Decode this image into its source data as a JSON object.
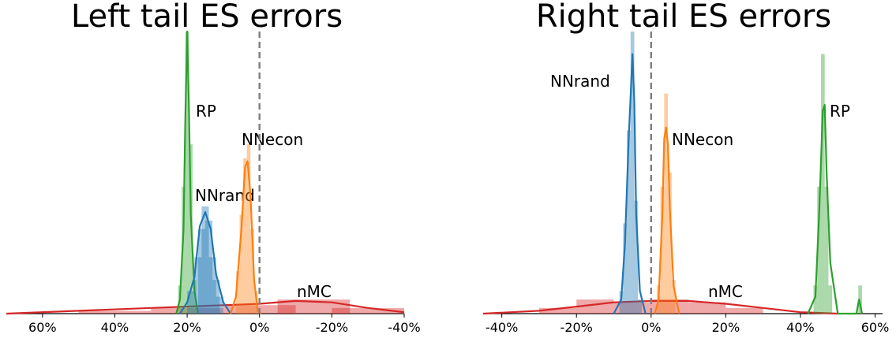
{
  "chart_data": [
    {
      "type": "area",
      "title": "Left tail ES errors",
      "xlabel": "",
      "ylabel": "",
      "x_reversed": true,
      "xlim": [
        70,
        -40
      ],
      "xticks": [
        60,
        40,
        20,
        0,
        -20,
        -40
      ],
      "tick_labels": [
        "60%",
        "40%",
        "20%",
        "0%",
        "-20%",
        "-40%"
      ],
      "reference_line_x": 0,
      "series": [
        {
          "name": "RP",
          "color": "#2ca02c",
          "density_curve": [
            [
              23.0,
              0.0
            ],
            [
              22.0,
              0.05
            ],
            [
              21.0,
              0.3
            ],
            [
              20.5,
              0.7
            ],
            [
              20.0,
              1.0
            ],
            [
              19.5,
              0.72
            ],
            [
              19.0,
              0.35
            ],
            [
              18.0,
              0.08
            ],
            [
              17.0,
              0.0
            ]
          ],
          "histogram": [
            [
              22.0,
              0.1
            ],
            [
              21.0,
              0.45
            ],
            [
              20.0,
              1.0
            ],
            [
              19.0,
              0.6
            ],
            [
              18.0,
              0.12
            ]
          ]
        },
        {
          "name": "NNrand",
          "color": "#1f77b4",
          "density_curve": [
            [
              22.0,
              0.0
            ],
            [
              20.0,
              0.04
            ],
            [
              18.0,
              0.13
            ],
            [
              16.5,
              0.31
            ],
            [
              15.0,
              0.36
            ],
            [
              13.5,
              0.3
            ],
            [
              12.0,
              0.14
            ],
            [
              10.0,
              0.04
            ],
            [
              8.0,
              0.0
            ]
          ],
          "histogram": [
            [
              19.0,
              0.08
            ],
            [
              17.0,
              0.2
            ],
            [
              16.0,
              0.3
            ],
            [
              15.0,
              0.38
            ],
            [
              14.0,
              0.33
            ],
            [
              13.0,
              0.2
            ],
            [
              12.0,
              0.12
            ],
            [
              11.0,
              0.06
            ]
          ]
        },
        {
          "name": "NNecon",
          "color": "#ff7f0e",
          "density_curve": [
            [
              8.0,
              0.0
            ],
            [
              6.5,
              0.06
            ],
            [
              5.0,
              0.3
            ],
            [
              4.0,
              0.52
            ],
            [
              3.3,
              0.54
            ],
            [
              2.5,
              0.42
            ],
            [
              1.5,
              0.12
            ],
            [
              0.5,
              0.01
            ],
            [
              -0.5,
              0.0
            ]
          ],
          "histogram": [
            [
              6.0,
              0.15
            ],
            [
              5.0,
              0.35
            ],
            [
              4.0,
              0.55
            ],
            [
              3.0,
              0.6
            ],
            [
              2.0,
              0.3
            ],
            [
              1.0,
              0.08
            ]
          ]
        },
        {
          "name": "nMC",
          "color": "#d62728",
          "density_curve": [
            [
              70,
              0.0
            ],
            [
              50,
              0.01
            ],
            [
              30,
              0.02
            ],
            [
              10,
              0.03
            ],
            [
              0,
              0.035
            ],
            [
              -10,
              0.045
            ],
            [
              -20,
              0.04
            ],
            [
              -30,
              0.02
            ],
            [
              -40,
              0.005
            ]
          ],
          "histogram": [
            [
              60,
              0.0
            ],
            [
              40,
              0.01
            ],
            [
              20,
              0.02
            ],
            [
              0,
              0.03
            ],
            [
              -15,
              0.05
            ],
            [
              -30,
              0.02
            ]
          ]
        }
      ]
    },
    {
      "type": "area",
      "title": "Right tail ES errors",
      "xlabel": "",
      "ylabel": "",
      "xlim": [
        -45,
        62
      ],
      "xticks": [
        -40,
        -20,
        0,
        20,
        40,
        60
      ],
      "tick_labels": [
        "-40%",
        "-20%",
        "0%",
        "20%",
        "40%",
        "60%"
      ],
      "reference_line_x": 0,
      "series": [
        {
          "name": "NNrand",
          "color": "#1f77b4",
          "density_curve": [
            [
              -10.0,
              0.0
            ],
            [
              -8.0,
              0.05
            ],
            [
              -7.0,
              0.25
            ],
            [
              -6.0,
              0.62
            ],
            [
              -5.0,
              0.92
            ],
            [
              -4.5,
              0.75
            ],
            [
              -4.0,
              0.35
            ],
            [
              -3.0,
              0.08
            ],
            [
              -1.5,
              0.0
            ]
          ],
          "histogram": [
            [
              -8.0,
              0.08
            ],
            [
              -7.0,
              0.32
            ],
            [
              -6.0,
              0.65
            ],
            [
              -5.0,
              1.0
            ],
            [
              -4.0,
              0.4
            ],
            [
              -3.0,
              0.05
            ]
          ]
        },
        {
          "name": "NNecon",
          "color": "#ff7f0e",
          "density_curve": [
            [
              1.0,
              0.0
            ],
            [
              2.0,
              0.05
            ],
            [
              3.0,
              0.35
            ],
            [
              3.5,
              0.62
            ],
            [
              4.0,
              0.66
            ],
            [
              4.5,
              0.6
            ],
            [
              5.0,
              0.38
            ],
            [
              6.0,
              0.1
            ],
            [
              7.5,
              0.0
            ]
          ],
          "histogram": [
            [
              2.0,
              0.1
            ],
            [
              3.0,
              0.45
            ],
            [
              4.0,
              0.78
            ],
            [
              5.0,
              0.5
            ],
            [
              6.0,
              0.12
            ]
          ]
        },
        {
          "name": "RP",
          "color": "#2ca02c",
          "density_curve": [
            [
              42.0,
              0.0
            ],
            [
              44.0,
              0.06
            ],
            [
              45.0,
              0.35
            ],
            [
              46.0,
              0.72
            ],
            [
              46.5,
              0.74
            ],
            [
              47.0,
              0.5
            ],
            [
              48.0,
              0.18
            ],
            [
              50.0,
              0.0
            ],
            [
              55.0,
              0.0
            ],
            [
              55.7,
              0.05
            ],
            [
              56.5,
              0.0
            ]
          ],
          "histogram": [
            [
              44.0,
              0.1
            ],
            [
              45.0,
              0.45
            ],
            [
              46.0,
              0.92
            ],
            [
              47.0,
              0.45
            ],
            [
              48.0,
              0.1
            ],
            [
              56.0,
              0.1
            ]
          ]
        },
        {
          "name": "nMC",
          "color": "#d62728",
          "density_curve": [
            [
              -45,
              0.0
            ],
            [
              -30,
              0.01
            ],
            [
              -20,
              0.025
            ],
            [
              -10,
              0.04
            ],
            [
              0,
              0.045
            ],
            [
              10,
              0.045
            ],
            [
              20,
              0.035
            ],
            [
              30,
              0.02
            ],
            [
              40,
              0.005
            ],
            [
              50,
              0.0
            ]
          ],
          "histogram": [
            [
              -25,
              0.02
            ],
            [
              -15,
              0.05
            ],
            [
              -5,
              0.04
            ],
            [
              5,
              0.05
            ],
            [
              15,
              0.04
            ],
            [
              25,
              0.02
            ]
          ]
        }
      ]
    }
  ]
}
